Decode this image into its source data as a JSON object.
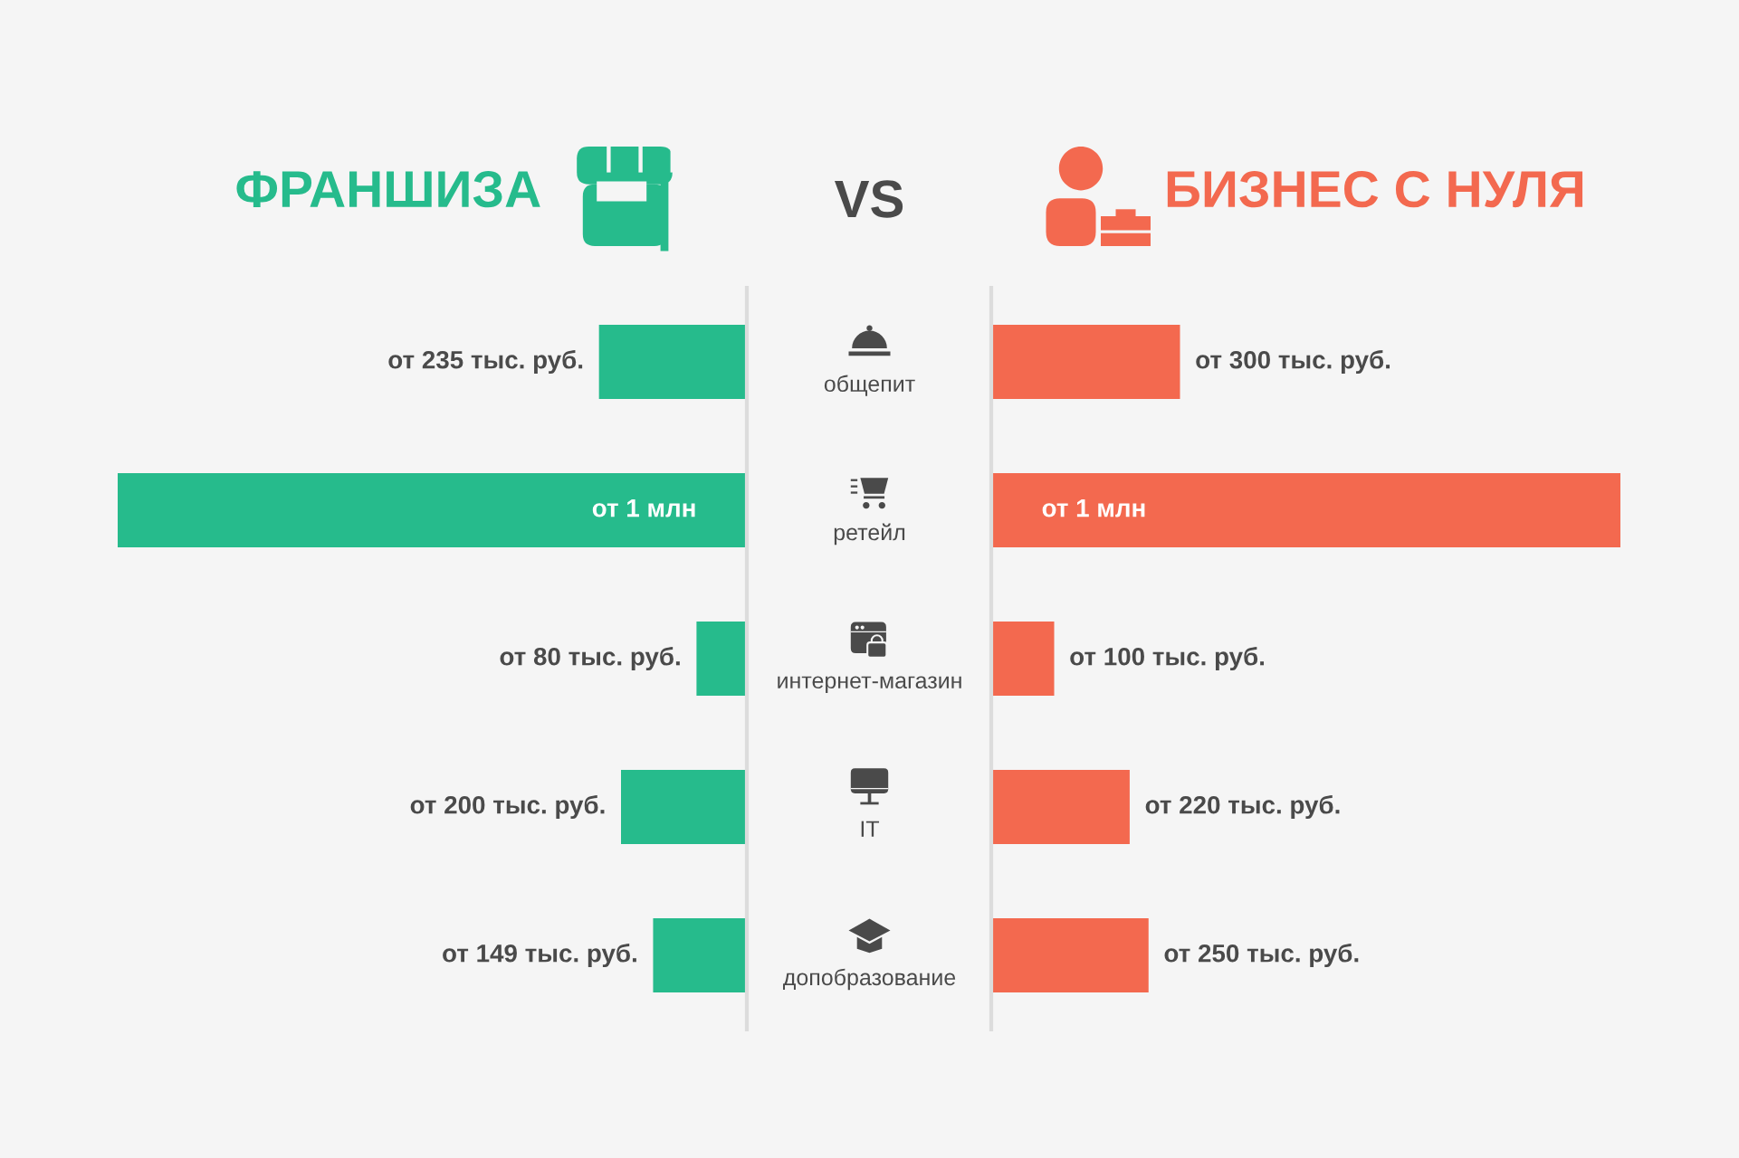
{
  "chart_data": [
    {
      "type": "bar",
      "orientation": "horizontal",
      "title": "ФРАНШИЗА",
      "categories": [
        "общепит",
        "ретейл",
        "интернет-магазин",
        "IT",
        "допобразование"
      ],
      "values": [
        235,
        1000,
        80,
        200,
        149
      ],
      "value_labels": [
        "от 235 тыс. руб.",
        "от 1 млн",
        "от 80 тыс. руб.",
        "от 200 тыс. руб.",
        "от 149 тыс. руб."
      ],
      "color": "#26bb8c",
      "xlim": [
        1000,
        0
      ],
      "tick_labels": "y",
      "annotations": [
        "VS"
      ]
    },
    {
      "type": "bar",
      "orientation": "horizontal",
      "title": "БИЗНЕС С НУЛЯ",
      "categories": [
        "общепит",
        "ретейл",
        "интернет-магазин",
        "IT",
        "допобразование"
      ],
      "values": [
        300,
        1000,
        100,
        220,
        250
      ],
      "value_labels": [
        "от 300 тыс. руб.",
        "от 1 млн",
        "от 100 тыс. руб.",
        "от 220 тыс. руб.",
        "от 250 тыс. руб."
      ],
      "color": "#f3694f",
      "xlim": [
        0,
        1000
      ],
      "tick_labels": false
    }
  ]
}
